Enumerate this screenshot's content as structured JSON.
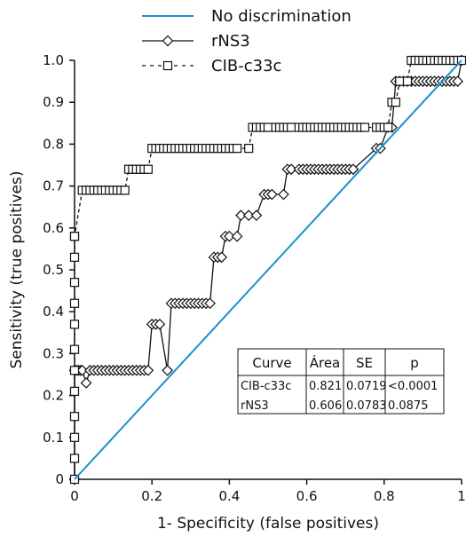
{
  "chart_data": {
    "type": "line",
    "xlabel": "1- Specificity (false positives)",
    "ylabel": "Sensitivity (true positives)",
    "xlim": [
      0,
      1
    ],
    "ylim": [
      0,
      1
    ],
    "x_ticks": [
      "0",
      "0.2",
      "0.4",
      "0.6",
      "0.8",
      "1"
    ],
    "y_ticks": [
      "0",
      "0.1",
      "0.2",
      "0.3",
      "0.4",
      "0.5",
      "0.6",
      "0.7",
      "0.8",
      "0.9",
      "1.0"
    ],
    "grid": false,
    "legend_position": "top",
    "series": [
      {
        "name": "No discrimination",
        "style": "line",
        "color": "#1a8fd0",
        "marker": "none",
        "x": [
          0,
          1
        ],
        "y": [
          0,
          1
        ]
      },
      {
        "name": "rNS3",
        "style": "solid",
        "color": "#111111",
        "marker": "diamond",
        "x": [
          0,
          0,
          0.005,
          0.01,
          0.015,
          0.02,
          0.03,
          0.04,
          0.05,
          0.06,
          0.07,
          0.08,
          0.09,
          0.1,
          0.11,
          0.12,
          0.13,
          0.14,
          0.15,
          0.16,
          0.17,
          0.18,
          0.19,
          0.2,
          0.21,
          0.22,
          0.24,
          0.25,
          0.26,
          0.27,
          0.28,
          0.29,
          0.3,
          0.31,
          0.32,
          0.33,
          0.34,
          0.35,
          0.36,
          0.37,
          0.38,
          0.39,
          0.4,
          0.42,
          0.43,
          0.45,
          0.47,
          0.49,
          0.5,
          0.51,
          0.54,
          0.55,
          0.56,
          0.58,
          0.59,
          0.6,
          0.61,
          0.62,
          0.63,
          0.64,
          0.65,
          0.66,
          0.67,
          0.68,
          0.69,
          0.7,
          0.71,
          0.72,
          0.78,
          0.79,
          0.81,
          0.82,
          0.83,
          0.84,
          0.85,
          0.86,
          0.87,
          0.88,
          0.89,
          0.9,
          0.91,
          0.92,
          0.93,
          0.94,
          0.95,
          0.96,
          0.97,
          0.98,
          0.99,
          1.0
        ],
        "y": [
          0,
          0.26,
          0.26,
          0.26,
          0.26,
          0.26,
          0.23,
          0.26,
          0.26,
          0.26,
          0.26,
          0.26,
          0.26,
          0.26,
          0.26,
          0.26,
          0.26,
          0.26,
          0.26,
          0.26,
          0.26,
          0.26,
          0.26,
          0.37,
          0.37,
          0.37,
          0.26,
          0.42,
          0.42,
          0.42,
          0.42,
          0.42,
          0.42,
          0.42,
          0.42,
          0.42,
          0.42,
          0.42,
          0.53,
          0.53,
          0.53,
          0.58,
          0.58,
          0.58,
          0.63,
          0.63,
          0.63,
          0.68,
          0.68,
          0.68,
          0.68,
          0.74,
          0.74,
          0.74,
          0.74,
          0.74,
          0.74,
          0.74,
          0.74,
          0.74,
          0.74,
          0.74,
          0.74,
          0.74,
          0.74,
          0.74,
          0.74,
          0.74,
          0.79,
          0.79,
          0.84,
          0.84,
          0.95,
          0.95,
          0.95,
          0.95,
          0.95,
          0.95,
          0.95,
          0.95,
          0.95,
          0.95,
          0.95,
          0.95,
          0.95,
          0.95,
          0.95,
          0.95,
          0.95,
          1.0
        ]
      },
      {
        "name": "CIB-c33c",
        "style": "dashed",
        "color": "#111111",
        "marker": "square",
        "x": [
          0,
          0,
          0,
          0,
          0,
          0,
          0,
          0,
          0,
          0,
          0,
          0,
          0,
          0.02,
          0.03,
          0.04,
          0.05,
          0.06,
          0.07,
          0.08,
          0.09,
          0.1,
          0.11,
          0.12,
          0.13,
          0.14,
          0.15,
          0.16,
          0.17,
          0.18,
          0.19,
          0.2,
          0.21,
          0.22,
          0.23,
          0.24,
          0.25,
          0.26,
          0.27,
          0.28,
          0.29,
          0.3,
          0.31,
          0.32,
          0.33,
          0.34,
          0.35,
          0.36,
          0.37,
          0.38,
          0.39,
          0.4,
          0.41,
          0.42,
          0.45,
          0.46,
          0.47,
          0.48,
          0.49,
          0.5,
          0.52,
          0.53,
          0.54,
          0.55,
          0.56,
          0.58,
          0.59,
          0.6,
          0.61,
          0.62,
          0.63,
          0.64,
          0.65,
          0.66,
          0.67,
          0.68,
          0.69,
          0.7,
          0.71,
          0.72,
          0.73,
          0.74,
          0.75,
          0.78,
          0.79,
          0.8,
          0.81,
          0.82,
          0.83,
          0.84,
          0.86,
          0.87,
          0.88,
          0.89,
          0.9,
          0.91,
          0.92,
          0.93,
          0.94,
          0.95,
          0.96,
          0.97,
          0.98,
          0.99,
          1.0
        ],
        "y": [
          0,
          0.05,
          0.1,
          0.15,
          0.21,
          0.26,
          0.31,
          0.37,
          0.42,
          0.47,
          0.53,
          0.58,
          0.58,
          0.69,
          0.69,
          0.69,
          0.69,
          0.69,
          0.69,
          0.69,
          0.69,
          0.69,
          0.69,
          0.69,
          0.69,
          0.74,
          0.74,
          0.74,
          0.74,
          0.74,
          0.74,
          0.79,
          0.79,
          0.79,
          0.79,
          0.79,
          0.79,
          0.79,
          0.79,
          0.79,
          0.79,
          0.79,
          0.79,
          0.79,
          0.79,
          0.79,
          0.79,
          0.79,
          0.79,
          0.79,
          0.79,
          0.79,
          0.79,
          0.79,
          0.79,
          0.84,
          0.84,
          0.84,
          0.84,
          0.84,
          0.84,
          0.84,
          0.84,
          0.84,
          0.84,
          0.84,
          0.84,
          0.84,
          0.84,
          0.84,
          0.84,
          0.84,
          0.84,
          0.84,
          0.84,
          0.84,
          0.84,
          0.84,
          0.84,
          0.84,
          0.84,
          0.84,
          0.84,
          0.84,
          0.84,
          0.84,
          0.84,
          0.9,
          0.9,
          0.95,
          0.95,
          1.0,
          1.0,
          1.0,
          1.0,
          1.0,
          1.0,
          1.0,
          1.0,
          1.0,
          1.0,
          1.0,
          1.0,
          1.0,
          1.0
        ]
      }
    ],
    "table": {
      "headers": [
        "Curve",
        "Área",
        "SE",
        "p"
      ],
      "rows": [
        [
          "CIB-c33c",
          "0.821",
          "0.0719",
          "<0.0001"
        ],
        [
          "rNS3",
          "0.606",
          "0.0783",
          "0.0875"
        ]
      ]
    }
  }
}
